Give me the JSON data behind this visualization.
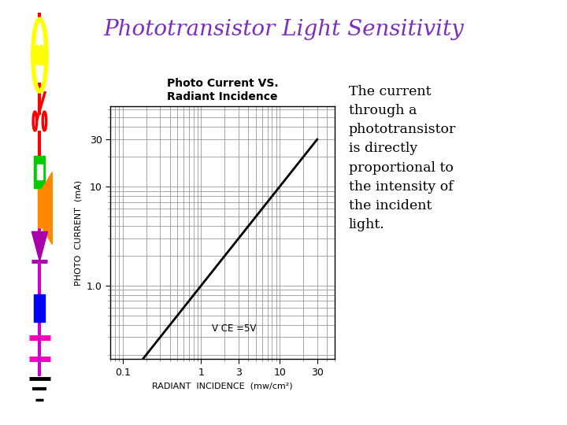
{
  "title": "Phototransistor Light Sensitivity",
  "title_color": "#7B2FBE",
  "chart_title_line1": "Photo Current VS.",
  "chart_title_line2": "Radiant Incidence",
  "xlabel": "RADIANT  INCIDENCE  (mw/cm²)",
  "ylabel": "PHOTO  CURRENT  (mA)",
  "annotation": "V CE =5V",
  "description": "The current\nthrough a\nphototransistor\nis directly\nproportional to\nthe intensity of\nthe incident\nlight.",
  "x_ticks": [
    0.1,
    1,
    3,
    10,
    30
  ],
  "x_tick_labels": [
    "0.1",
    "1",
    "3",
    "10",
    "30"
  ],
  "y_ticks": [
    1.0,
    10,
    30
  ],
  "y_tick_labels": [
    "1.0",
    "10",
    "30"
  ],
  "xlim": [
    0.07,
    50
  ],
  "ylim": [
    0.18,
    65
  ],
  "line_x": [
    0.08,
    30
  ],
  "line_y": [
    0.08,
    30
  ],
  "background_color": "#ffffff",
  "grid_color": "#999999",
  "line_color": "#000000",
  "circuit_colors": {
    "bulb_ring": "#ffff00",
    "switch": "#ff0000",
    "wire_red": "#ff0000",
    "wire_purple": "#cc00cc",
    "resistor": "#00cc00",
    "speaker": "#ff8800",
    "diode": "#aa00aa",
    "battery": "#0000ff",
    "cap": "#ff00bb",
    "ground": "#000000"
  }
}
